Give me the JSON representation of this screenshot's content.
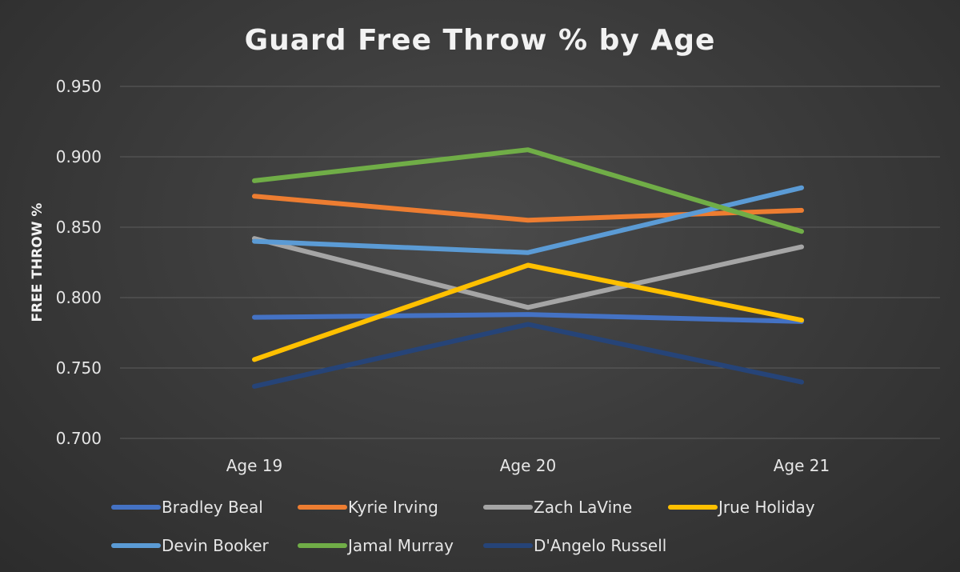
{
  "chart_data": {
    "type": "line",
    "title": "Guard Free Throw % by Age",
    "ylabel": "FREE THROW %",
    "xlabel": "",
    "categories": [
      "Age 19",
      "Age 20",
      "Age 21"
    ],
    "ylim": [
      0.7,
      0.95
    ],
    "yticks": [
      "0.700",
      "0.750",
      "0.800",
      "0.850",
      "0.900",
      "0.950"
    ],
    "grid": true,
    "legend_position": "bottom",
    "series": [
      {
        "name": "Bradley Beal",
        "color": "#4472C4",
        "values": [
          0.786,
          0.788,
          0.783
        ]
      },
      {
        "name": "Kyrie Irving",
        "color": "#ED7D31",
        "values": [
          0.872,
          0.855,
          0.862
        ]
      },
      {
        "name": "Zach LaVine",
        "color": "#A5A5A5",
        "values": [
          0.842,
          0.793,
          0.836
        ]
      },
      {
        "name": "Jrue Holiday",
        "color": "#FFC000",
        "values": [
          0.756,
          0.823,
          0.784
        ]
      },
      {
        "name": "Devin Booker",
        "color": "#5B9BD5",
        "values": [
          0.84,
          0.832,
          0.878
        ]
      },
      {
        "name": "Jamal Murray",
        "color": "#70AD47",
        "values": [
          0.883,
          0.905,
          0.847
        ]
      },
      {
        "name": "D'Angelo Russell",
        "color": "#264478",
        "values": [
          0.737,
          0.781,
          0.74
        ]
      }
    ]
  }
}
